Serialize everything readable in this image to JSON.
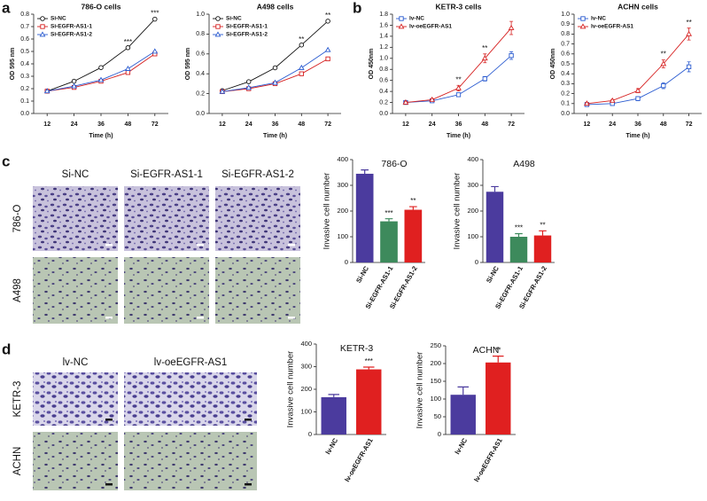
{
  "panel_labels": [
    "a",
    "b",
    "c",
    "d"
  ],
  "image_grids": [
    {
      "columns": [
        "Si-NC",
        "Si-EGFR-AS1-1",
        "Si-EGFR-AS1-2"
      ],
      "rows": [
        "786-O",
        "A498"
      ]
    },
    {
      "columns": [
        "lv-NC",
        "lv-oeEGFR-AS1"
      ],
      "rows": [
        "KETR-3",
        "ACHN"
      ]
    }
  ],
  "chart_data": [
    {
      "type": "line",
      "title": "786-O cells",
      "x_label": "Time (h)",
      "y_label": "OD 595 nm",
      "categories": [
        "12",
        "24",
        "36",
        "48",
        "72"
      ],
      "ylim": [
        0,
        0.8
      ],
      "yticks": [
        {
          "value": 0,
          "label": "0.0"
        },
        {
          "value": 0.1,
          "label": "0.1"
        },
        {
          "value": 0.2,
          "label": "0.2"
        },
        {
          "value": 0.3,
          "label": "0.3"
        },
        {
          "value": 0.4,
          "label": "0.4"
        },
        {
          "value": 0.5,
          "label": "0.5"
        },
        {
          "value": 0.6,
          "label": "0.6"
        },
        {
          "value": 0.7,
          "label": "0.7"
        },
        {
          "value": 0.8,
          "label": "0.8"
        }
      ],
      "legend": "upper left",
      "series": [
        {
          "name": "Si-NC",
          "color": "#111111",
          "marker": "circle",
          "values": [
            0.18,
            0.26,
            0.37,
            0.53,
            0.76
          ]
        },
        {
          "name": "Si-EGFR-AS1-1",
          "color": "#d62020",
          "marker": "square",
          "values": [
            0.18,
            0.21,
            0.26,
            0.33,
            0.48
          ]
        },
        {
          "name": "Si-EGFR-AS1-2",
          "color": "#2a5bd0",
          "marker": "triangle",
          "values": [
            0.18,
            0.22,
            0.27,
            0.36,
            0.5
          ]
        }
      ],
      "annotations": [
        {
          "category": "48",
          "text": "***"
        },
        {
          "category": "72",
          "text": "***"
        }
      ]
    },
    {
      "type": "line",
      "title": "A498 cells",
      "x_label": "Time (h)",
      "y_label": "OD 595 nm",
      "categories": [
        "12",
        "24",
        "36",
        "48",
        "72"
      ],
      "ylim": [
        0,
        1.0
      ],
      "yticks": [
        {
          "value": 0,
          "label": "0.0"
        },
        {
          "value": 0.2,
          "label": "0.2"
        },
        {
          "value": 0.4,
          "label": "0.4"
        },
        {
          "value": 0.6,
          "label": "0.6"
        },
        {
          "value": 0.8,
          "label": "0.8"
        },
        {
          "value": 1.0,
          "label": "1.0"
        }
      ],
      "legend": "upper left",
      "series": [
        {
          "name": "Si-NC",
          "color": "#111111",
          "marker": "circle",
          "values": [
            0.23,
            0.32,
            0.46,
            0.69,
            0.93
          ]
        },
        {
          "name": "Si-EGFR-AS1-1",
          "color": "#d62020",
          "marker": "square",
          "values": [
            0.22,
            0.25,
            0.3,
            0.4,
            0.55
          ]
        },
        {
          "name": "Si-EGFR-AS1-2",
          "color": "#2a5bd0",
          "marker": "triangle",
          "values": [
            0.22,
            0.26,
            0.31,
            0.46,
            0.64
          ]
        }
      ],
      "annotations": [
        {
          "category": "48",
          "text": "**"
        },
        {
          "category": "72",
          "text": "**"
        }
      ]
    },
    {
      "type": "line",
      "title": "KETR-3 cells",
      "x_label": "Time (h)",
      "y_label": "OD 450nm",
      "categories": [
        "12",
        "24",
        "36",
        "48",
        "72"
      ],
      "ylim": [
        0,
        1.8
      ],
      "yticks": [
        {
          "value": 0,
          "label": "0.0"
        },
        {
          "value": 0.2,
          "label": "0.2"
        },
        {
          "value": 0.4,
          "label": "0.4"
        },
        {
          "value": 0.6,
          "label": "0.6"
        },
        {
          "value": 0.8,
          "label": "0.8"
        },
        {
          "value": 1.0,
          "label": "1.0"
        },
        {
          "value": 1.2,
          "label": "1.2"
        },
        {
          "value": 1.4,
          "label": "1.4"
        },
        {
          "value": 1.6,
          "label": "1.6"
        },
        {
          "value": 1.8,
          "label": "1.8"
        }
      ],
      "legend": "upper left",
      "series": [
        {
          "name": "lv-NC",
          "color": "#2a5bd0",
          "marker": "square",
          "values": [
            0.2,
            0.23,
            0.34,
            0.63,
            1.05
          ],
          "errors": [
            0.02,
            0.02,
            0.03,
            0.04,
            0.07
          ]
        },
        {
          "name": "lv-oeEGFR-AS1",
          "color": "#d62020",
          "marker": "triangle",
          "values": [
            0.2,
            0.25,
            0.46,
            1.0,
            1.55
          ],
          "errors": [
            0.02,
            0.02,
            0.05,
            0.08,
            0.12
          ]
        }
      ],
      "annotations": [
        {
          "category": "36",
          "text": "**"
        },
        {
          "category": "48",
          "text": "**"
        }
      ]
    },
    {
      "type": "line",
      "title": "ACHN cells",
      "x_label": "Time (h)",
      "y_label": "OD 450nm",
      "categories": [
        "12",
        "24",
        "36",
        "48",
        "72"
      ],
      "ylim": [
        0,
        1.0
      ],
      "yticks": [
        {
          "value": 0,
          "label": "0.0"
        },
        {
          "value": 0.1,
          "label": "0.1"
        },
        {
          "value": 0.2,
          "label": "0.2"
        },
        {
          "value": 0.3,
          "label": "0.3"
        },
        {
          "value": 0.4,
          "label": "0.4"
        },
        {
          "value": 0.5,
          "label": "0.5"
        },
        {
          "value": 0.6,
          "label": "0.6"
        },
        {
          "value": 0.7,
          "label": "0.7"
        },
        {
          "value": 0.8,
          "label": "0.8"
        },
        {
          "value": 0.9,
          "label": "0.9"
        },
        {
          "value": 1.0,
          "label": "1.0"
        }
      ],
      "legend": "upper left",
      "series": [
        {
          "name": "lv-NC",
          "color": "#2a5bd0",
          "marker": "square",
          "values": [
            0.09,
            0.1,
            0.15,
            0.28,
            0.47
          ],
          "errors": [
            0.01,
            0.01,
            0.02,
            0.03,
            0.05
          ]
        },
        {
          "name": "lv-oeEGFR-AS1",
          "color": "#d62020",
          "marker": "triangle",
          "values": [
            0.1,
            0.13,
            0.23,
            0.5,
            0.8
          ],
          "errors": [
            0.01,
            0.01,
            0.02,
            0.04,
            0.06
          ]
        }
      ],
      "annotations": [
        {
          "category": "48",
          "text": "**"
        },
        {
          "category": "72",
          "text": "**"
        }
      ]
    },
    {
      "type": "bar",
      "title": "786-O",
      "y_label": "Invasive cell number",
      "categories": [
        "Si-NC",
        "Si-EGFR-AS1-1",
        "Si-EGFR-AS1-2"
      ],
      "values": [
        345,
        160,
        205
      ],
      "errors": [
        15,
        10,
        12
      ],
      "colors": [
        "#4b3b9e",
        "#3d8a5c",
        "#e02020"
      ],
      "ylim": [
        0,
        400
      ],
      "yticks": [
        0,
        100,
        200,
        300,
        400
      ],
      "annotations": [
        {
          "category": "Si-EGFR-AS1-1",
          "text": "***"
        },
        {
          "category": "Si-EGFR-AS1-2",
          "text": "**"
        }
      ]
    },
    {
      "type": "bar",
      "title": "A498",
      "y_label": "Invasive cell number",
      "categories": [
        "Si-NC",
        "Si-EGFR-AS1-1",
        "Si-EGFR-AS1-2"
      ],
      "values": [
        275,
        100,
        105
      ],
      "errors": [
        20,
        12,
        18
      ],
      "colors": [
        "#4b3b9e",
        "#3d8a5c",
        "#e02020"
      ],
      "ylim": [
        0,
        400
      ],
      "yticks": [
        0,
        100,
        200,
        300,
        400
      ],
      "annotations": [
        {
          "category": "Si-EGFR-AS1-1",
          "text": "***"
        },
        {
          "category": "Si-EGFR-AS1-2",
          "text": "**"
        }
      ]
    },
    {
      "type": "bar",
      "title": "KETR-3",
      "y_label": "Invasive cell number",
      "categories": [
        "lv-NC",
        "lv-oeEGFR-AS1"
      ],
      "values": [
        165,
        288
      ],
      "errors": [
        12,
        10
      ],
      "colors": [
        "#4b3b9e",
        "#e02020"
      ],
      "ylim": [
        0,
        400
      ],
      "yticks": [
        0,
        100,
        200,
        300,
        400
      ],
      "annotations": [
        {
          "category": "lv-oeEGFR-AS1",
          "text": "***"
        }
      ]
    },
    {
      "type": "bar",
      "title": "ACHN",
      "y_label": "Invasive cell number",
      "categories": [
        "lv-NC",
        "lv-oeEGFR-AS1"
      ],
      "values": [
        112,
        203
      ],
      "errors": [
        22,
        18
      ],
      "colors": [
        "#4b3b9e",
        "#e02020"
      ],
      "ylim": [
        0,
        250
      ],
      "yticks": [
        0,
        50,
        100,
        150,
        200,
        250
      ],
      "annotations": [
        {
          "category": "lv-oeEGFR-AS1",
          "text": "**"
        }
      ]
    }
  ]
}
